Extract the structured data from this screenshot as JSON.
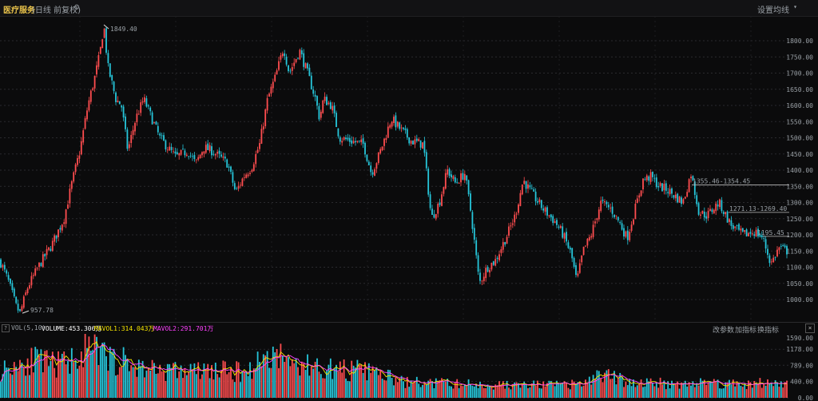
{
  "header": {
    "title": "医疗服务",
    "period": "(日线 前复权)",
    "settings_label": "设置均线"
  },
  "colors": {
    "up": "#ff4d4f",
    "down": "#26c6da",
    "ma5": "#ffffff",
    "ma10": "#f5e400",
    "ma20": "#ff40ff",
    "grid": "#2a2a2e",
    "price_level": "#bdbdbd"
  },
  "chart_data": {
    "type": "candlestick",
    "y_axis": {
      "ylim": [
        950,
        1850
      ],
      "ticks": [
        "1800.00",
        "1750.00",
        "1700.00",
        "1650.00",
        "1600.00",
        "1550.00",
        "1500.00",
        "1450.00",
        "1400.00",
        "1350.00",
        "1300.00",
        "1250.00",
        "1200.00",
        "1150.00",
        "1100.00",
        "1050.00",
        "1000.00"
      ]
    },
    "annotations": [
      {
        "label": "1849.40",
        "price": 1849.4,
        "kind": "high"
      },
      {
        "label": "957.78",
        "price": 957.78,
        "kind": "low"
      },
      {
        "label": "1355.46-1354.45",
        "price": 1354.45
      },
      {
        "label": "1271.13-1269.40",
        "price": 1269.4
      },
      {
        "label": "1195.45",
        "price": 1195.45
      }
    ],
    "close_path": [
      [
        0,
        1120
      ],
      [
        10,
        1060
      ],
      [
        20,
        980
      ],
      [
        25,
        957.78
      ],
      [
        35,
        1040
      ],
      [
        50,
        1110
      ],
      [
        65,
        1170
      ],
      [
        80,
        1250
      ],
      [
        90,
        1360
      ],
      [
        100,
        1460
      ],
      [
        110,
        1600
      ],
      [
        118,
        1680
      ],
      [
        125,
        1760
      ],
      [
        130,
        1849.4
      ],
      [
        135,
        1720
      ],
      [
        145,
        1620
      ],
      [
        152,
        1600
      ],
      [
        160,
        1460
      ],
      [
        170,
        1560
      ],
      [
        180,
        1620
      ],
      [
        190,
        1560
      ],
      [
        200,
        1500
      ],
      [
        210,
        1470
      ],
      [
        220,
        1440
      ],
      [
        235,
        1460
      ],
      [
        245,
        1420
      ],
      [
        255,
        1470
      ],
      [
        265,
        1460
      ],
      [
        275,
        1440
      ],
      [
        285,
        1420
      ],
      [
        295,
        1330
      ],
      [
        305,
        1380
      ],
      [
        315,
        1410
      ],
      [
        325,
        1480
      ],
      [
        335,
        1620
      ],
      [
        345,
        1690
      ],
      [
        355,
        1780
      ],
      [
        362,
        1700
      ],
      [
        375,
        1770
      ],
      [
        385,
        1700
      ],
      [
        395,
        1620
      ],
      [
        400,
        1560
      ],
      [
        405,
        1620
      ],
      [
        415,
        1600
      ],
      [
        425,
        1500
      ],
      [
        440,
        1490
      ],
      [
        455,
        1480
      ],
      [
        465,
        1390
      ],
      [
        475,
        1450
      ],
      [
        490,
        1560
      ],
      [
        500,
        1530
      ],
      [
        515,
        1490
      ],
      [
        530,
        1480
      ],
      [
        540,
        1250
      ],
      [
        550,
        1300
      ],
      [
        560,
        1400
      ],
      [
        570,
        1360
      ],
      [
        582,
        1390
      ],
      [
        590,
        1260
      ],
      [
        600,
        1050
      ],
      [
        610,
        1100
      ],
      [
        620,
        1120
      ],
      [
        635,
        1200
      ],
      [
        645,
        1260
      ],
      [
        655,
        1370
      ],
      [
        665,
        1330
      ],
      [
        680,
        1280
      ],
      [
        695,
        1240
      ],
      [
        705,
        1200
      ],
      [
        715,
        1140
      ],
      [
        722,
        1055
      ],
      [
        730,
        1150
      ],
      [
        740,
        1200
      ],
      [
        752,
        1300
      ],
      [
        765,
        1280
      ],
      [
        775,
        1240
      ],
      [
        785,
        1190
      ],
      [
        795,
        1280
      ],
      [
        805,
        1370
      ],
      [
        815,
        1380
      ],
      [
        825,
        1350
      ],
      [
        835,
        1340
      ],
      [
        845,
        1320
      ],
      [
        855,
        1300
      ],
      [
        865,
        1390
      ],
      [
        875,
        1270
      ],
      [
        885,
        1260
      ],
      [
        900,
        1300
      ],
      [
        915,
        1230
      ],
      [
        930,
        1200
      ],
      [
        945,
        1210
      ],
      [
        955,
        1190
      ],
      [
        965,
        1110
      ],
      [
        975,
        1160
      ],
      [
        985,
        1150
      ]
    ],
    "volume": {
      "label": "VOL(5,10)",
      "volume_text": "VOLUME:453.306万",
      "mavol1_text": "MAVOL1:314.043万",
      "mavol2_text": "MAVOL2:291.701万",
      "ylim": [
        0,
        1600
      ],
      "ticks": [
        "1590.00",
        "1178.00",
        "789.00",
        "400.00",
        "0.00"
      ],
      "level_path": [
        [
          0,
          700
        ],
        [
          20,
          900
        ],
        [
          40,
          1000
        ],
        [
          60,
          880
        ],
        [
          80,
          900
        ],
        [
          95,
          1100
        ],
        [
          110,
          1250
        ],
        [
          125,
          1180
        ],
        [
          140,
          1000
        ],
        [
          155,
          950
        ],
        [
          170,
          800
        ],
        [
          190,
          780
        ],
        [
          210,
          720
        ],
        [
          230,
          700
        ],
        [
          250,
          700
        ],
        [
          270,
          720
        ],
        [
          290,
          680
        ],
        [
          310,
          700
        ],
        [
          330,
          1050
        ],
        [
          345,
          1200
        ],
        [
          360,
          950
        ],
        [
          380,
          850
        ],
        [
          400,
          800
        ],
        [
          420,
          750
        ],
        [
          440,
          720
        ],
        [
          460,
          700
        ],
        [
          480,
          600
        ],
        [
          500,
          420
        ],
        [
          520,
          400
        ],
        [
          540,
          380
        ],
        [
          560,
          380
        ],
        [
          580,
          360
        ],
        [
          600,
          340
        ],
        [
          620,
          340
        ],
        [
          640,
          330
        ],
        [
          660,
          330
        ],
        [
          680,
          340
        ],
        [
          700,
          330
        ],
        [
          720,
          340
        ],
        [
          740,
          450
        ],
        [
          755,
          650
        ],
        [
          770,
          500
        ],
        [
          790,
          420
        ],
        [
          810,
          400
        ],
        [
          830,
          380
        ],
        [
          850,
          380
        ],
        [
          870,
          390
        ],
        [
          890,
          400
        ],
        [
          910,
          380
        ],
        [
          930,
          360
        ],
        [
          950,
          380
        ],
        [
          965,
          380
        ],
        [
          985,
          360
        ]
      ]
    }
  },
  "volume_toolbar": {
    "modify_params": "改参数",
    "add_indicator": "加指标",
    "swap_indicator": "换指标",
    "close": "×",
    "help": "?"
  }
}
